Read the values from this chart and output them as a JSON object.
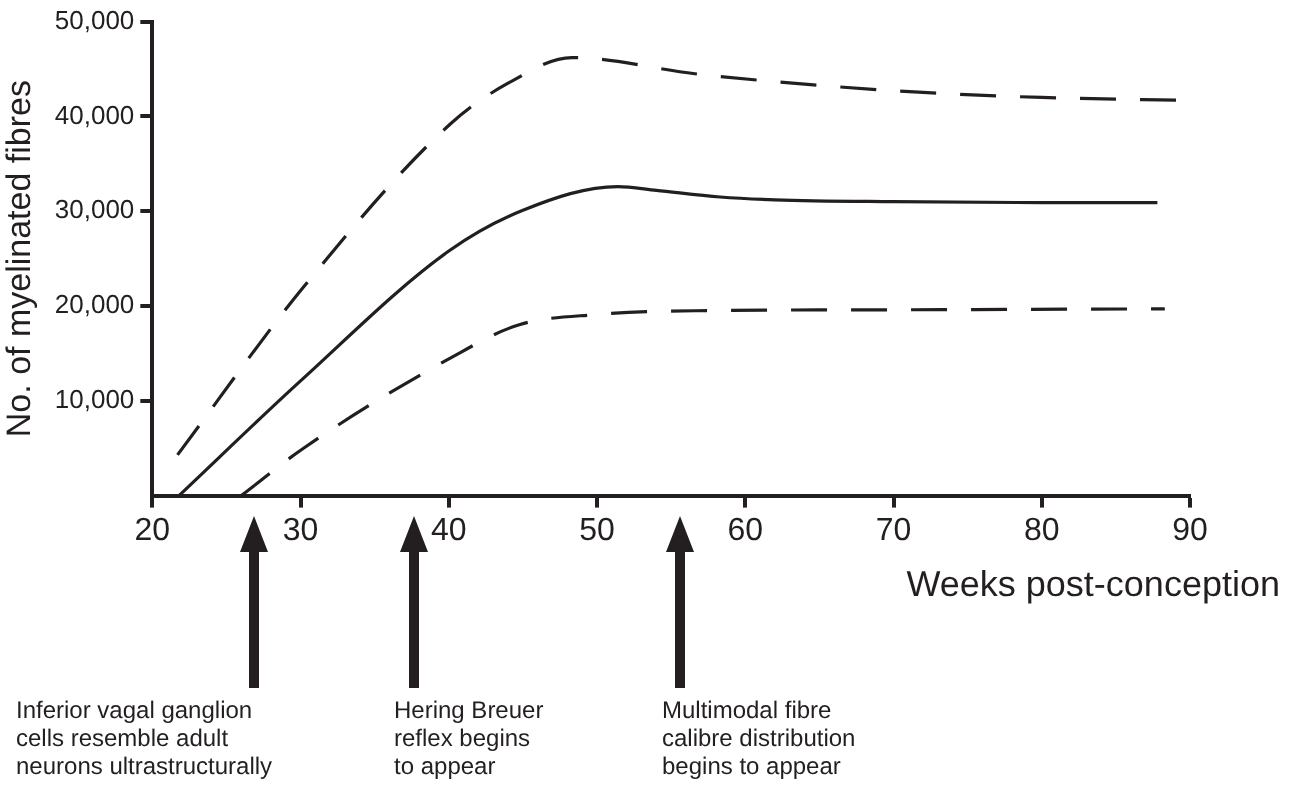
{
  "chart_data": {
    "type": "line",
    "xlabel": "Weeks post-conception",
    "ylabel": "No. of myelinated fibres",
    "xlim": [
      20,
      90
    ],
    "xticks": [
      20,
      30,
      40,
      50,
      60,
      70,
      80,
      90
    ],
    "ylim": [
      0,
      50000
    ],
    "yticks": [
      {
        "value": 10000,
        "label": "10,000"
      },
      {
        "value": 20000,
        "label": "20,000"
      },
      {
        "value": 30000,
        "label": "30,000"
      },
      {
        "value": 40000,
        "label": "40,000"
      },
      {
        "value": 50000,
        "label": "50,000"
      }
    ],
    "grid": false,
    "legend": false,
    "marker": "none",
    "series": [
      {
        "color": "#231f20",
        "line_style": "solid",
        "x": [
          21.8,
          30,
          40,
          45,
          51.4,
          54,
          58.3,
          62,
          70,
          80,
          87.8
        ],
        "values": [
          0,
          12100,
          25800,
          30100,
          32600,
          32200,
          31500,
          31200,
          31000,
          30900,
          30900
        ]
      },
      {
        "color": "#231f20",
        "line_style": "dashed",
        "x": [
          21.7,
          30.2,
          40.1,
          44,
          48.3,
          56.6,
          64,
          72.3,
          80,
          89.3
        ],
        "values": [
          4300,
          22000,
          39200,
          43500,
          46200,
          44500,
          43400,
          42500,
          42000,
          41700
        ]
      },
      {
        "color": "#231f20",
        "line_style": "dashed",
        "x": [
          26,
          30.2,
          40.1,
          44.7,
          50,
          56.6,
          70,
          88.3
        ],
        "values": [
          0,
          5000,
          14500,
          18000,
          19100,
          19500,
          19600,
          19700
        ]
      }
    ],
    "annotations": [
      "Inferior vagal ganglion\ncells resemble adult\nneurons ultrastructurally",
      "Hering Breuer\nreflex begins\nto appear",
      "Multimodal fibre\ncalibre distribution\nbegins to appear"
    ]
  }
}
